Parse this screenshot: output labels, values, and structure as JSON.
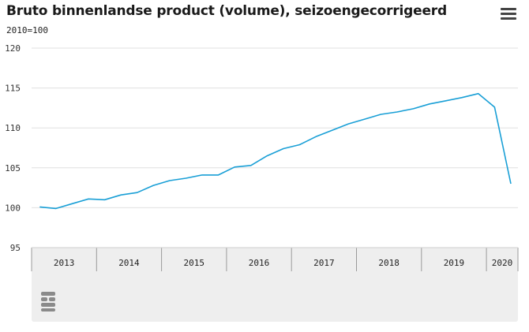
{
  "header": {
    "title": "Bruto binnenlandse product (volume), seizoengecorrigeerd",
    "subtitle": "2010=100",
    "menu_icon": "hamburger-menu-icon"
  },
  "colors": {
    "line": "#199fd6",
    "grid": "#e0e0e0",
    "axis_band": "#eeeeee"
  },
  "chart_data": {
    "type": "line",
    "title": "Bruto binnenlandse product (volume), seizoengecorrigeerd",
    "subtitle": "2010=100",
    "xlabel": "",
    "ylabel": "",
    "ylim": [
      95,
      120
    ],
    "yticks": [
      95,
      100,
      105,
      110,
      115,
      120
    ],
    "grid": true,
    "legend": "none",
    "x_axis_years": [
      "2013",
      "2014",
      "2015",
      "2016",
      "2017",
      "2018",
      "2019",
      "2020"
    ],
    "series": [
      {
        "x": [
          "2013 Q1",
          "2013 Q2",
          "2013 Q3",
          "2013 Q4",
          "2014 Q1",
          "2014 Q2",
          "2014 Q3",
          "2014 Q4",
          "2015 Q1",
          "2015 Q2",
          "2015 Q3",
          "2015 Q4",
          "2016 Q1",
          "2016 Q2",
          "2016 Q3",
          "2016 Q4",
          "2017 Q1",
          "2017 Q2",
          "2017 Q3",
          "2017 Q4",
          "2018 Q1",
          "2018 Q2",
          "2018 Q3",
          "2018 Q4",
          "2019 Q1",
          "2019 Q2",
          "2019 Q3",
          "2019 Q4",
          "2020 Q1",
          "2020 Q2"
        ],
        "values": [
          100.1,
          99.9,
          100.5,
          101.1,
          101.0,
          101.6,
          101.9,
          102.8,
          103.4,
          103.7,
          104.1,
          104.1,
          105.1,
          105.3,
          106.5,
          107.4,
          107.9,
          108.9,
          109.7,
          110.5,
          111.1,
          111.7,
          112.0,
          112.4,
          113.0,
          113.4,
          113.8,
          114.3,
          112.6,
          103.0
        ]
      }
    ]
  },
  "logo": {
    "name": "cbs-logo-icon"
  }
}
